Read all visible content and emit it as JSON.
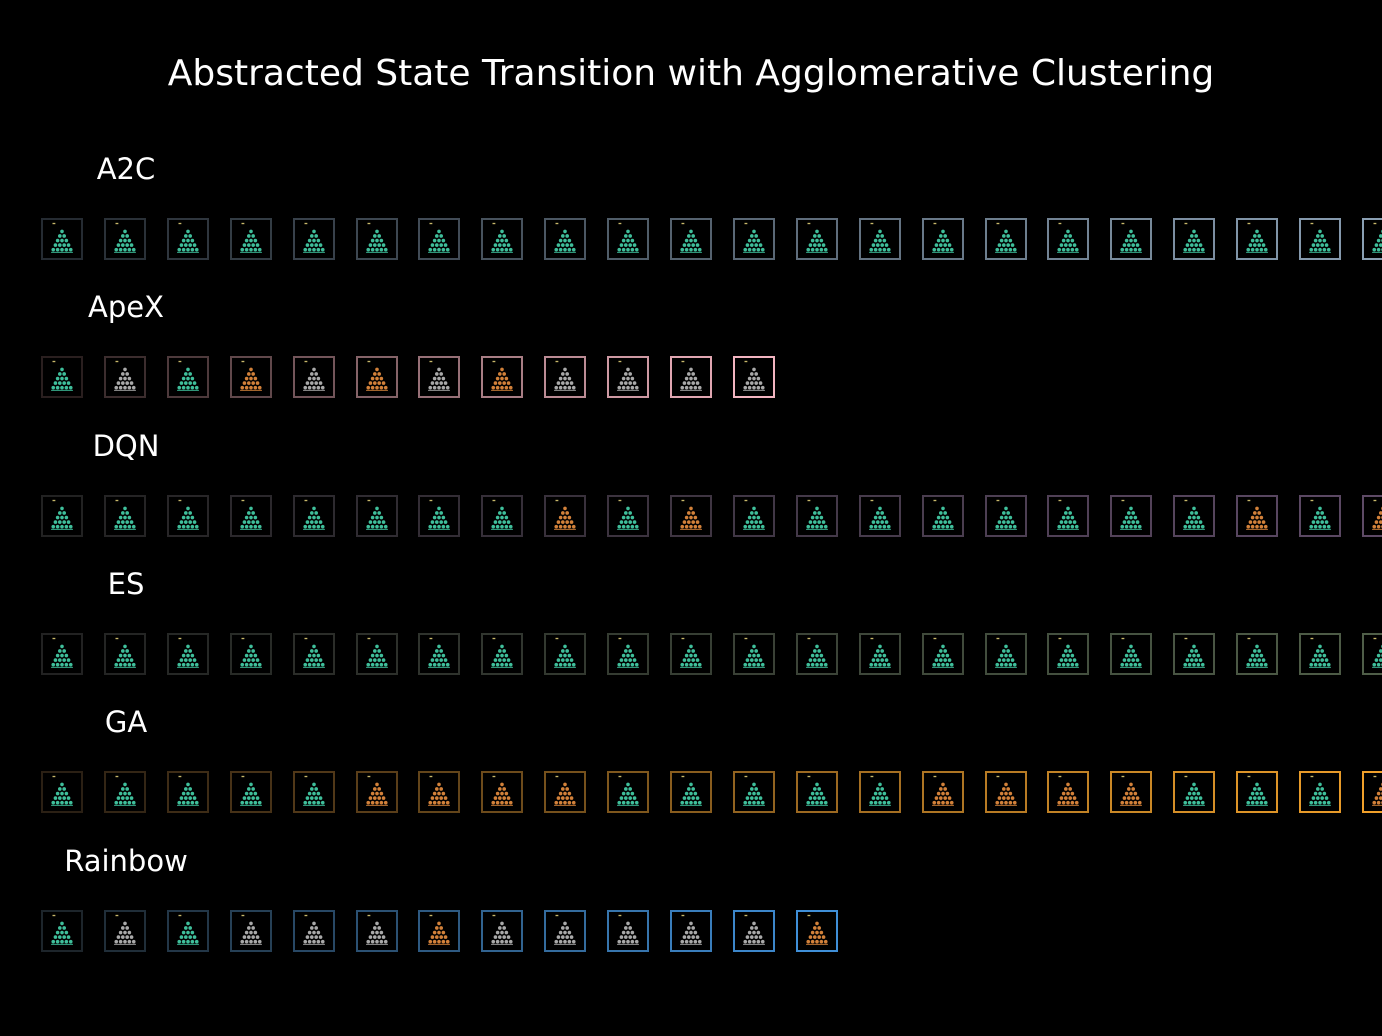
{
  "title": "Abstracted State Transition with Agglomerative Clustering",
  "palette": {
    "background": "#000000",
    "pegs": {
      "teal": "#3fbf9b",
      "gray": "#a9a9a9",
      "orange": "#d2813a"
    }
  },
  "rows": [
    {
      "label": "A2C",
      "border_start": "#252b32",
      "border_end": "#8a9fb3",
      "states": [
        "teal",
        "teal",
        "teal",
        "teal",
        "teal",
        "teal",
        "teal",
        "teal",
        "teal",
        "teal",
        "teal",
        "teal",
        "teal",
        "teal",
        "teal",
        "teal",
        "teal",
        "teal",
        "teal",
        "teal",
        "teal",
        "teal"
      ]
    },
    {
      "label": "ApeX",
      "border_start": "#2a1f1f",
      "border_end": "#f2b4c0",
      "states": [
        "teal",
        "gray",
        "teal",
        "orange",
        "gray",
        "orange",
        "gray",
        "orange",
        "gray",
        "gray",
        "gray",
        "gray"
      ]
    },
    {
      "label": "DQN",
      "border_start": "#222222",
      "border_end": "#5e4a66",
      "states": [
        "teal",
        "teal",
        "teal",
        "teal",
        "teal",
        "teal",
        "teal",
        "teal",
        "orange",
        "teal",
        "orange",
        "teal",
        "teal",
        "teal",
        "teal",
        "teal",
        "teal",
        "teal",
        "teal",
        "orange",
        "teal",
        "orange"
      ]
    },
    {
      "label": "ES",
      "border_start": "#222222",
      "border_end": "#4f5e48",
      "states": [
        "teal",
        "teal",
        "teal",
        "teal",
        "teal",
        "teal",
        "teal",
        "teal",
        "teal",
        "teal",
        "teal",
        "teal",
        "teal",
        "teal",
        "teal",
        "teal",
        "teal",
        "teal",
        "teal",
        "teal",
        "teal",
        "teal"
      ]
    },
    {
      "label": "GA",
      "border_start": "#2b2014",
      "border_end": "#f0a02a",
      "states": [
        "teal",
        "teal",
        "teal",
        "teal",
        "teal",
        "orange",
        "orange",
        "orange",
        "orange",
        "teal",
        "teal",
        "teal",
        "teal",
        "teal",
        "orange",
        "orange",
        "orange",
        "orange",
        "teal",
        "teal",
        "teal",
        "orange"
      ]
    },
    {
      "label": "Rainbow",
      "border_start": "#1d252b",
      "border_end": "#3f8fd8",
      "states": [
        "teal",
        "gray",
        "teal",
        "gray",
        "gray",
        "gray",
        "orange",
        "gray",
        "gray",
        "gray",
        "gray",
        "gray",
        "orange"
      ]
    }
  ]
}
